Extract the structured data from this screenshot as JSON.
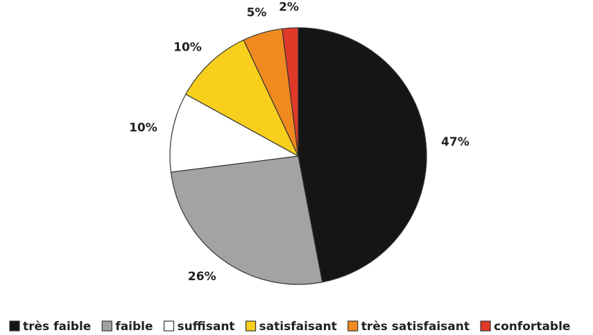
{
  "chart_data": {
    "type": "pie",
    "categories": [
      "très faible",
      "faible",
      "suffisant",
      "satisfaisant",
      "très satisfaisant",
      "confortable"
    ],
    "values": [
      47,
      26,
      10,
      10,
      5,
      2
    ],
    "value_labels": [
      "47%",
      "26%",
      "10%",
      "10%",
      "5%",
      "2%"
    ],
    "colors": [
      "#151515",
      "#a3a3a3",
      "#ffffff",
      "#f8cf1c",
      "#f08a1f",
      "#e0392a"
    ],
    "legend": "bottom"
  }
}
